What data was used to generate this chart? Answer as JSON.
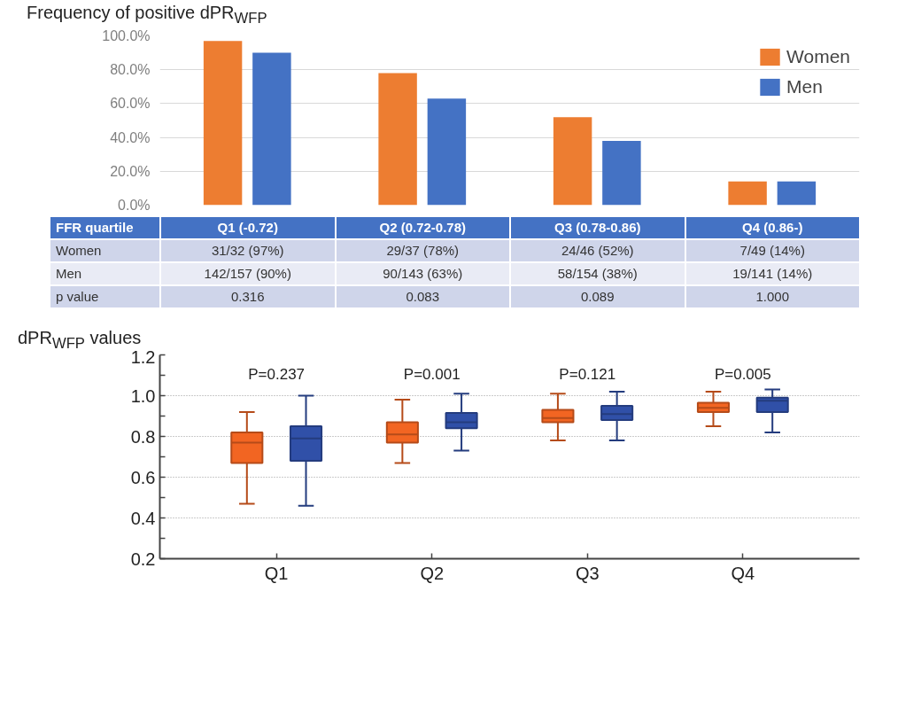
{
  "chart_data": [
    {
      "type": "bar",
      "title": "Frequency of positive dPR$_{WFP}$",
      "xlabel": "FFR quartile",
      "categories": [
        "Q1 (-0.72)",
        "Q2 (0.72-0.78)",
        "Q3 (0.78-0.86)",
        "Q4 (0.86-)"
      ],
      "series": [
        {
          "name": "Women",
          "color": "#ed7d31",
          "values": [
            97,
            78,
            52,
            14
          ],
          "value_labels": [
            "31/32 (97%)",
            "29/37 (78%)",
            "24/46 (52%)",
            "7/49 (14%)"
          ]
        },
        {
          "name": "Men",
          "color": "#4472c4",
          "values": [
            90,
            63,
            38,
            14
          ],
          "value_labels": [
            "142/157 (90%)",
            "90/143 (63%)",
            "58/154 (38%)",
            "19/141 (14%)"
          ]
        }
      ],
      "annotations": [
        "p value",
        "0.316",
        "0.083",
        "0.089",
        "1.000"
      ],
      "ylim": [
        0,
        100
      ],
      "yticks": [
        {
          "value": 0,
          "label": "0.0%"
        },
        {
          "value": 20,
          "label": "20.0%"
        },
        {
          "value": 40,
          "label": "40.0%"
        },
        {
          "value": 60,
          "label": "60.0%"
        },
        {
          "value": 80,
          "label": "80.0%"
        },
        {
          "value": 100,
          "label": "100.0%"
        }
      ],
      "grid": "y",
      "legend": "top right"
    },
    {
      "type": "box",
      "title": "dPR$_{WFP}$ values",
      "categories": [
        "Q1",
        "Q2",
        "Q3",
        "Q4"
      ],
      "series": [
        {
          "color": "#f26522",
          "boxes": [
            {
              "low": 0.47,
              "q1": 0.67,
              "median": 0.77,
              "q3": 0.82,
              "high": 0.92
            },
            {
              "low": 0.67,
              "q1": 0.77,
              "median": 0.81,
              "q3": 0.87,
              "high": 0.98
            },
            {
              "low": 0.78,
              "q1": 0.87,
              "median": 0.89,
              "q3": 0.93,
              "high": 1.01
            },
            {
              "low": 0.85,
              "q1": 0.92,
              "median": 0.94,
              "q3": 0.965,
              "high": 1.02
            }
          ]
        },
        {
          "color": "#3050a8",
          "boxes": [
            {
              "low": 0.46,
              "q1": 0.68,
              "median": 0.79,
              "q3": 0.85,
              "high": 1.0
            },
            {
              "low": 0.73,
              "q1": 0.84,
              "median": 0.87,
              "q3": 0.915,
              "high": 1.01
            },
            {
              "low": 0.78,
              "q1": 0.88,
              "median": 0.91,
              "q3": 0.95,
              "high": 1.02
            },
            {
              "low": 0.82,
              "q1": 0.92,
              "median": 0.975,
              "q3": 0.99,
              "high": 1.03
            }
          ]
        }
      ],
      "annotations": [
        "P=0.237",
        "P=0.001",
        "P=0.121",
        "P=0.005"
      ],
      "ylim": [
        0.2,
        1.2
      ],
      "yticks": [
        0.2,
        {
          "value": 0.3,
          "label": null
        },
        0.4,
        {
          "value": 0.5,
          "label": null
        },
        0.6,
        {
          "value": 0.7,
          "label": null
        },
        0.8,
        {
          "value": 0.9,
          "label": null
        },
        {
          "value": 1.0,
          "label": "1.0"
        },
        {
          "value": 1.1,
          "label": null
        },
        1.2
      ],
      "grid": "y"
    }
  ]
}
